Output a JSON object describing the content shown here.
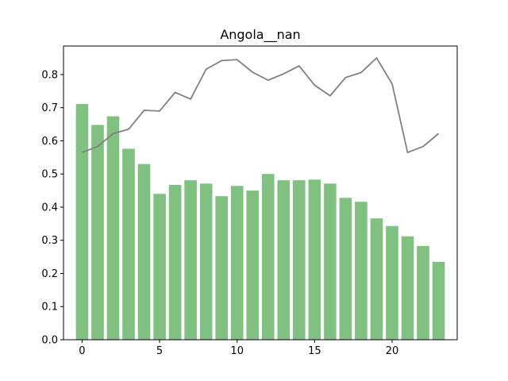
{
  "chart_data": {
    "type": "bar",
    "title": "Angola__nan",
    "xlabel": "",
    "ylabel": "",
    "xlim": [
      -1.2,
      24.2
    ],
    "ylim": [
      0.0,
      0.886
    ],
    "xticks": [
      0,
      5,
      10,
      15,
      20
    ],
    "yticks": [
      0.0,
      0.1,
      0.2,
      0.3,
      0.4,
      0.5,
      0.6,
      0.7,
      0.8
    ],
    "grid": false,
    "x": [
      0,
      1,
      2,
      3,
      4,
      5,
      6,
      7,
      8,
      9,
      10,
      11,
      12,
      13,
      14,
      15,
      16,
      17,
      18,
      19,
      20,
      21,
      22,
      23
    ],
    "series": [
      {
        "type": "bar",
        "color": "#80c080",
        "values": [
          0.711,
          0.648,
          0.674,
          0.576,
          0.53,
          0.44,
          0.467,
          0.481,
          0.471,
          0.433,
          0.464,
          0.45,
          0.5,
          0.481,
          0.481,
          0.483,
          0.471,
          0.428,
          0.416,
          0.366,
          0.343,
          0.312,
          0.283,
          0.235
        ]
      },
      {
        "type": "line",
        "color": "#808080",
        "values": [
          0.565,
          0.583,
          0.622,
          0.635,
          0.692,
          0.69,
          0.746,
          0.726,
          0.816,
          0.842,
          0.845,
          0.807,
          0.783,
          0.802,
          0.826,
          0.768,
          0.736,
          0.791,
          0.806,
          0.85,
          0.772,
          0.565,
          0.583,
          0.622
        ]
      }
    ]
  }
}
